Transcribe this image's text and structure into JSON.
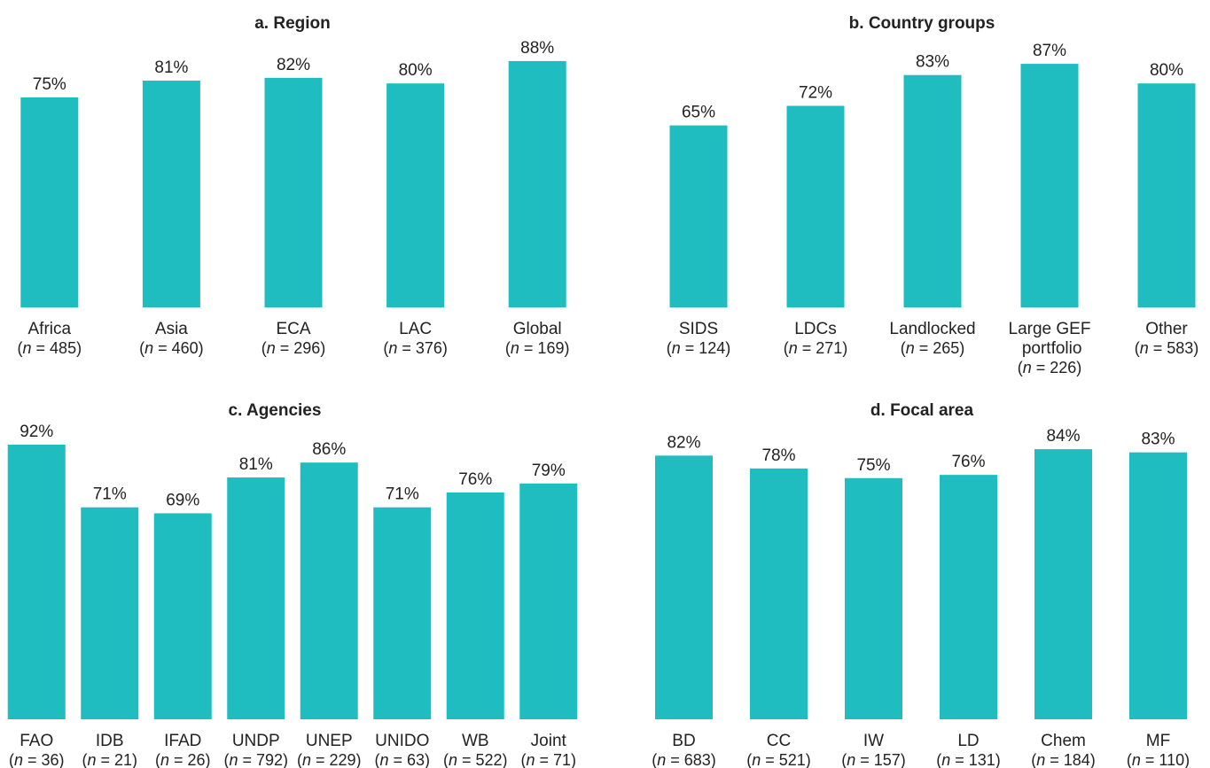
{
  "chart_data": [
    {
      "type": "bar",
      "title": "a. Region",
      "color": "#1fbdbf",
      "categories": [
        "Africa",
        "Asia",
        "ECA",
        "LAC",
        "Global"
      ],
      "sample_sizes": [
        "(n = 485)",
        "(n = 460)",
        "(n = 296)",
        "(n = 376)",
        "(n = 169)"
      ],
      "values": [
        75,
        81,
        82,
        80,
        88
      ],
      "value_labels": [
        "75%",
        "81%",
        "82%",
        "80%",
        "88%"
      ]
    },
    {
      "type": "bar",
      "title": "b. Country groups",
      "color": "#1fbdbf",
      "categories": [
        "SIDS",
        "LDCs",
        "Landlocked",
        "Large GEF portfolio",
        "Other"
      ],
      "sample_sizes": [
        "(n = 124)",
        "(n = 271)",
        "(n = 265)",
        "(n = 226)",
        "(n = 583)"
      ],
      "values": [
        65,
        72,
        83,
        87,
        80
      ],
      "value_labels": [
        "65%",
        "72%",
        "83%",
        "87%",
        "80%"
      ]
    },
    {
      "type": "bar",
      "title": "c. Agencies",
      "color": "#1fbdbf",
      "categories": [
        "FAO",
        "IDB",
        "IFAD",
        "UNDP",
        "UNEP",
        "UNIDO",
        "WB",
        "Joint"
      ],
      "sample_sizes": [
        "(n = 36)",
        "(n = 21)",
        "(n = 26)",
        "(n = 792)",
        "(n = 229)",
        "(n = 63)",
        "(n = 522)",
        "(n = 71)"
      ],
      "values": [
        92,
        71,
        69,
        81,
        86,
        71,
        76,
        79
      ],
      "value_labels": [
        "92%",
        "71%",
        "69%",
        "81%",
        "86%",
        "71%",
        "76%",
        "79%"
      ]
    },
    {
      "type": "bar",
      "title": "d. Focal area",
      "color": "#1fbdbf",
      "categories": [
        "BD",
        "CC",
        "IW",
        "LD",
        "Chem",
        "MF"
      ],
      "sample_sizes": [
        "(n = 683)",
        "(n = 521)",
        "(n = 157)",
        "(n = 131)",
        "(n = 184)",
        "(n = 110)"
      ],
      "values": [
        82,
        78,
        75,
        76,
        84,
        83
      ],
      "value_labels": [
        "82%",
        "78%",
        "75%",
        "76%",
        "84%",
        "83%"
      ]
    }
  ]
}
